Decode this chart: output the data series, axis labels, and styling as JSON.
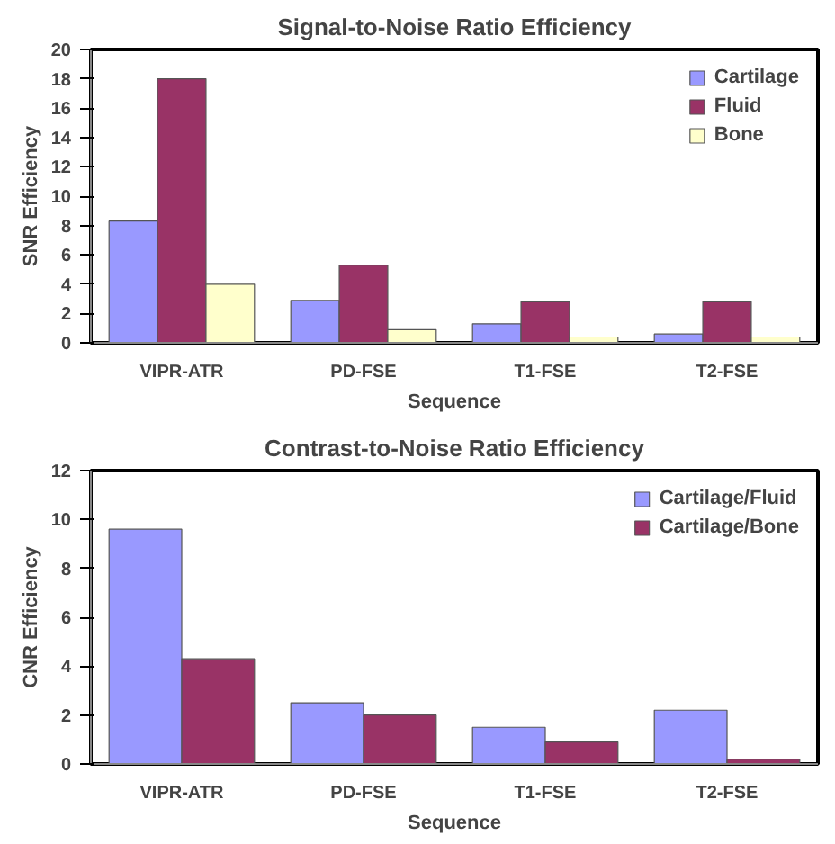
{
  "chart_data": [
    {
      "type": "bar",
      "title": "Signal-to-Noise Ratio Efficiency",
      "xlabel": "Sequence",
      "ylabel": "SNR Efficiency",
      "categories": [
        "VIPR-ATR",
        "PD-FSE",
        "T1-FSE",
        "T2-FSE"
      ],
      "ylim": [
        0,
        20
      ],
      "yticks": [
        0,
        2,
        4,
        6,
        8,
        10,
        12,
        14,
        16,
        18,
        20
      ],
      "grid": false,
      "legend": "top right",
      "series": [
        {
          "name": "Cartilage",
          "color": "#9999ff",
          "values": [
            8.3,
            2.9,
            1.3,
            0.6
          ]
        },
        {
          "name": "Fluid",
          "color": "#993366",
          "values": [
            18,
            5.3,
            2.8,
            2.8
          ]
        },
        {
          "name": "Bone",
          "color": "#ffffcc",
          "values": [
            4.0,
            0.9,
            0.4,
            0.4
          ]
        }
      ]
    },
    {
      "type": "bar",
      "title": "Contrast-to-Noise Ratio Efficiency",
      "xlabel": "Sequence",
      "ylabel": "CNR Efficiency",
      "categories": [
        "VIPR-ATR",
        "PD-FSE",
        "T1-FSE",
        "T2-FSE"
      ],
      "ylim": [
        0,
        12
      ],
      "yticks": [
        0,
        2,
        4,
        6,
        8,
        10,
        12
      ],
      "grid": false,
      "legend": "top right",
      "series": [
        {
          "name": "Cartilage/Fluid",
          "color": "#9999ff",
          "values": [
            9.6,
            2.5,
            1.5,
            2.2
          ]
        },
        {
          "name": "Cartilage/Bone",
          "color": "#993366",
          "values": [
            4.3,
            2.0,
            0.9,
            0.2
          ]
        }
      ]
    }
  ]
}
